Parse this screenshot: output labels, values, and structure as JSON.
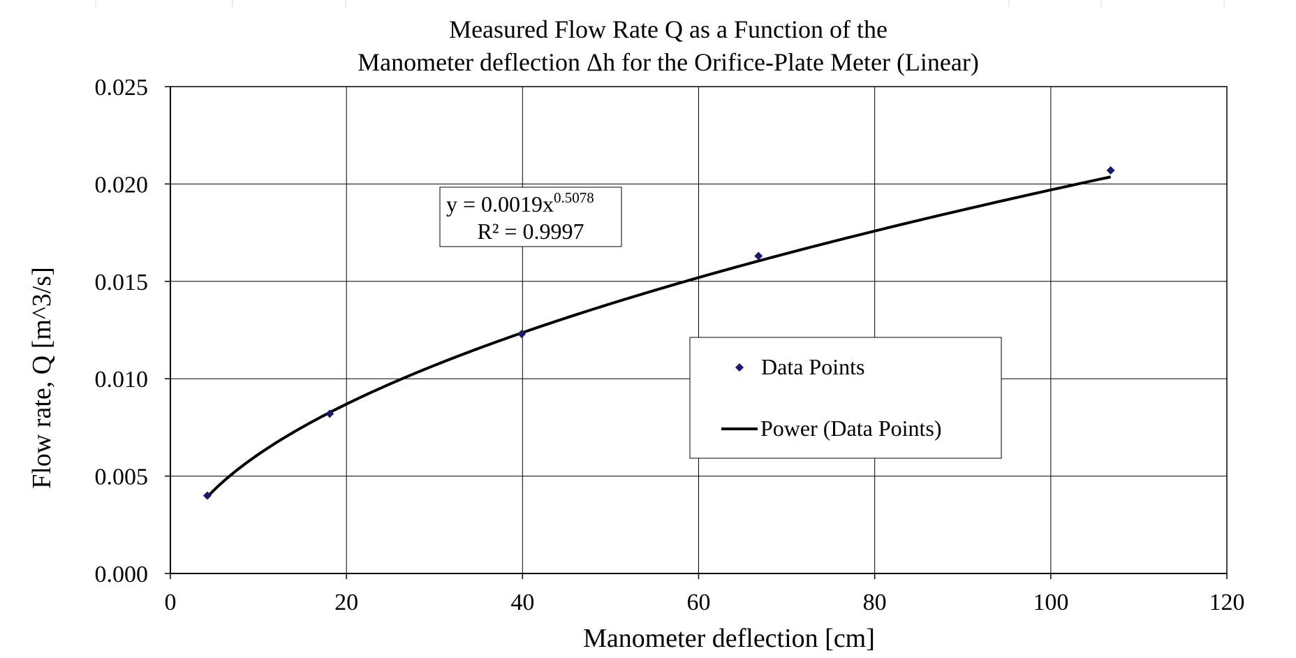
{
  "chart_data": {
    "type": "scatter",
    "title_lines": [
      "Measured Flow Rate Q as a Function of the",
      "Manometer deflection Δh for the Orifice-Plate Meter (Linear)"
    ],
    "xlabel": "Manometer deflection [cm]",
    "ylabel": "Flow rate, Q [m^3/s]",
    "xlim": [
      0,
      120
    ],
    "ylim": [
      0,
      0.025
    ],
    "x_ticks": [
      0,
      20,
      40,
      60,
      80,
      100,
      120
    ],
    "x_tick_labels": [
      "0",
      "20",
      "40",
      "60",
      "80",
      "100",
      "120"
    ],
    "y_ticks": [
      0,
      0.005,
      0.01,
      0.015,
      0.02,
      0.025
    ],
    "y_tick_labels": [
      "0.000",
      "0.005",
      "0.010",
      "0.015",
      "0.020",
      "0.025"
    ],
    "grid": true,
    "series": [
      {
        "name": "Data Points",
        "kind": "markers",
        "marker": "diamond",
        "color": "#1a1a6e",
        "x": [
          4.2,
          18.1,
          39.9,
          66.8,
          106.8
        ],
        "y": [
          0.004,
          0.0082,
          0.0123,
          0.0163,
          0.0207
        ]
      }
    ],
    "trendline": {
      "name": "Power (Data Points)",
      "type": "power",
      "coefficient": 0.0019,
      "exponent": 0.5078,
      "x_range": [
        4.2,
        106.8
      ],
      "color": "#000000"
    },
    "equation_label": {
      "prefix": "y = 0.0019x",
      "exponent_text": "0.5078",
      "r_squared_text": "R² = 0.9997",
      "placement": "upper-left"
    },
    "legend": {
      "placement": "center-right",
      "entries": [
        "Data Points",
        "Power (Data Points)"
      ]
    }
  }
}
